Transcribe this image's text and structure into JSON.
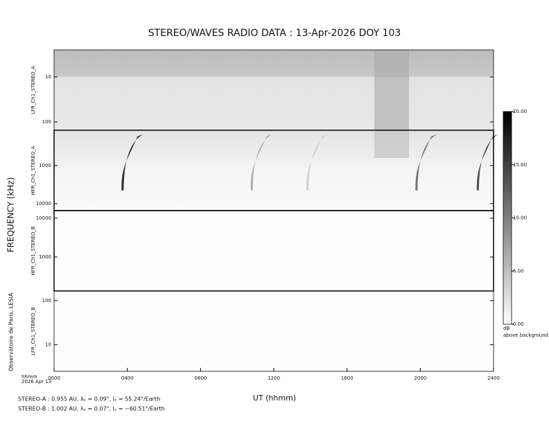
{
  "chart_data": {
    "type": "spectrogram",
    "title": "STEREO/WAVES  RADIO  DATA : 13-Apr-2026  DOY 103",
    "y_label": "FREQUENCY (kHz)",
    "x_label": "UT (hhmm)",
    "xlim": [
      0,
      24
    ],
    "xticks": [
      {
        "value": 0,
        "label": "0000"
      },
      {
        "value": 4,
        "label": "0400"
      },
      {
        "value": 8,
        "label": "0800"
      },
      {
        "value": 12,
        "label": "1200"
      },
      {
        "value": 16,
        "label": "1600"
      },
      {
        "value": 20,
        "label": "2000"
      },
      {
        "value": 24,
        "label": "2400"
      }
    ],
    "x_unit": "hhmm",
    "date_label": "2026 Apr 13",
    "credit": "Observatoire de Paris, LESIA",
    "log_y": true,
    "panels": [
      {
        "name": "LFR_Ch1_STEREO_A",
        "ylim": [
          2.5,
          153
        ],
        "yticks": [
          10,
          100
        ]
      },
      {
        "name": "HFR_Ch1_STEREO_A",
        "ylim": [
          118,
          15200
        ],
        "yticks": [
          1000,
          10000
        ],
        "bursts": [
          {
            "t": 3.8,
            "db": 18
          },
          {
            "t": 10.85,
            "db": 7
          },
          {
            "t": 13.9,
            "db": 4
          },
          {
            "t": 19.85,
            "db": 12
          },
          {
            "t": 23.2,
            "db": 15
          }
        ]
      },
      {
        "name": "HFR_Ch1_STEREO_B",
        "ylim": [
          15700,
          133
        ],
        "yticks": [
          10000,
          1000
        ]
      },
      {
        "name": "LFR_Ch1_STEREO_B",
        "ylim": [
          165,
          2.5
        ],
        "yticks": [
          100,
          10
        ]
      }
    ],
    "colorbar": {
      "lim": [
        0,
        20
      ],
      "ticks": [
        {
          "value": 20,
          "label": "20.00"
        },
        {
          "value": 15,
          "label": "15.00"
        },
        {
          "value": 10,
          "label": "10.00"
        },
        {
          "value": 5,
          "label": "5.00"
        },
        {
          "value": 0,
          "label": "0.00"
        }
      ],
      "unit": "dB",
      "caption": "above background"
    },
    "footer": [
      "STEREO-A : 0.955 AU, λₑ = 0.09°, lₑ = 55.24°/Earth",
      "STEREO-B : 1.002 AU, λₑ = 0.07°, lₑ = −60.51°/Earth"
    ]
  }
}
